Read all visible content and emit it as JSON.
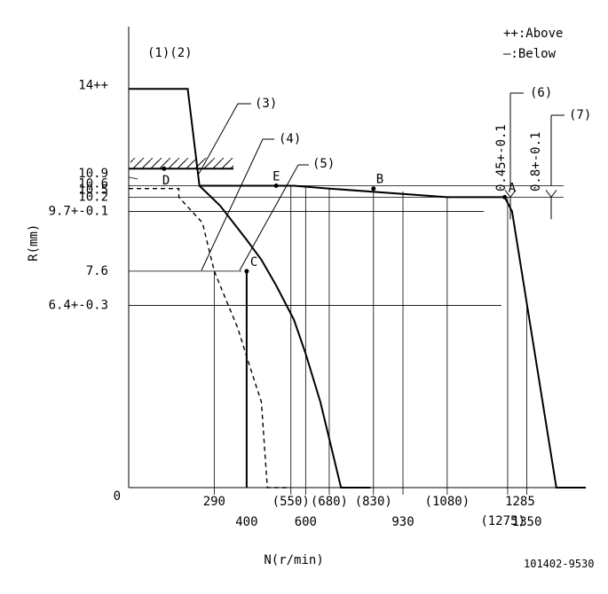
{
  "chart_data": {
    "type": "line",
    "title": "",
    "xlabel": "N(r/min)",
    "ylabel": "R(mm)",
    "figure_id": "101402-9530",
    "legend": [
      {
        "symbol": "++",
        "text": ":Above"
      },
      {
        "symbol": "—",
        "text": ":Below"
      }
    ],
    "notes_label": "(1)(2)",
    "y_tick_labels": [
      {
        "text": "14++",
        "value": 14
      },
      {
        "text": "10.9",
        "value": 10.9
      },
      {
        "text": "10.6",
        "value": 10.6
      },
      {
        "text": "10.5",
        "value": 10.5
      },
      {
        "text": "10.2",
        "value": 10.2
      },
      {
        "text": "9.7+-0.1",
        "value": 9.7
      },
      {
        "text": "7.6",
        "value": 7.6
      },
      {
        "text": "6.4+-0.3",
        "value": 6.4
      },
      {
        "text": "0",
        "value": 0
      }
    ],
    "x_tick_labels": [
      {
        "text": "290",
        "value": 290
      },
      {
        "text": "400",
        "value": 400
      },
      {
        "text": "(550)",
        "value": 550
      },
      {
        "text": "600",
        "value": 600
      },
      {
        "text": "(680)",
        "value": 680
      },
      {
        "text": "(830)",
        "value": 830
      },
      {
        "text": "930",
        "value": 930
      },
      {
        "text": "(1080)",
        "value": 1080
      },
      {
        "text": "(1275)",
        "value": 1275
      },
      {
        "text": "1285",
        "value": 1285
      },
      {
        "text": "1350",
        "value": 1350
      }
    ],
    "points": [
      {
        "label": "A",
        "x": 1275,
        "y": 10.2
      },
      {
        "label": "B",
        "x": 830,
        "y": 10.5
      },
      {
        "label": "C",
        "x": 400,
        "y": 7.6
      },
      {
        "label": "D",
        "x": 120,
        "y": 11.2
      },
      {
        "label": "E",
        "x": 500,
        "y": 10.6
      }
    ],
    "callouts": [
      {
        "text": "(3)"
      },
      {
        "text": "(4)"
      },
      {
        "text": "(5)"
      },
      {
        "text": "(6)",
        "value_text": "0.45+-0.1"
      },
      {
        "text": "(7)",
        "value_text": "0.8+-0.1"
      }
    ],
    "series": [
      {
        "style": "solid",
        "x": [
          0,
          200,
          240,
          430,
          560,
          680,
          1080,
          1275,
          1300,
          1450,
          1550
        ],
        "y": [
          14,
          14,
          10.6,
          10.6,
          10.6,
          10.5,
          10.2,
          10.2,
          9.7,
          0,
          0
        ]
      },
      {
        "style": "solid",
        "x": [
          240,
          310,
          400,
          450,
          500,
          560,
          600,
          650,
          720,
          820
        ],
        "y": [
          10.6,
          9.9,
          8.7,
          8.0,
          7.1,
          5.9,
          4.7,
          3.0,
          0,
          0
        ]
      },
      {
        "style": "dashed",
        "x": [
          0,
          170,
          170,
          250,
          290,
          330,
          370,
          400,
          450,
          470,
          540
        ],
        "y": [
          10.5,
          10.5,
          10.2,
          9.3,
          7.6,
          6.6,
          5.6,
          4.6,
          3.0,
          0,
          0
        ]
      },
      {
        "style": "solid",
        "x": [
          400,
          400
        ],
        "y": [
          7.6,
          0
        ]
      }
    ],
    "xlim": [
      0,
      1550
    ],
    "ylim": [
      0,
      16.5
    ],
    "grid": false
  }
}
